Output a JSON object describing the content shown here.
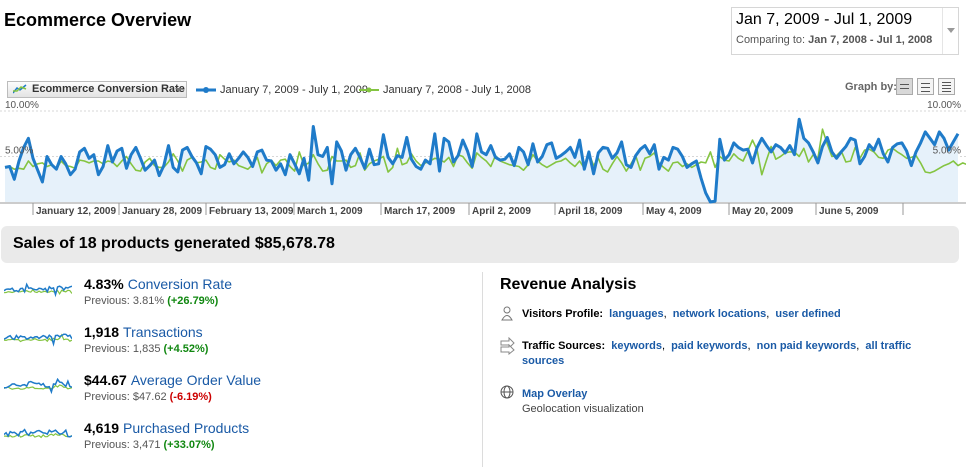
{
  "header": {
    "title": "Ecommerce Overview"
  },
  "date_range": {
    "main": "Jan 7, 2009 - Jul 1, 2009",
    "compare_label": "Comparing to:",
    "compare_range": "Jan 7, 2008 - Jul 1, 2008"
  },
  "graph_controls": {
    "metric_select": "Ecommerce Conversion Rate",
    "legend": [
      {
        "label": "January 7, 2009 - July 1, 2009",
        "color": "#1f7bc9"
      },
      {
        "label": "January 7, 2008 - July 1, 2008",
        "color": "#84c441"
      }
    ],
    "graph_by_label": "Graph by:",
    "graph_by_options": [
      "day-icon",
      "week-icon",
      "month-icon"
    ]
  },
  "chart_data": {
    "type": "line",
    "y_tick_labels": [
      "10.00%",
      "5.00%"
    ],
    "ylim": [
      0,
      10
    ],
    "x_tick_labels": [
      "January 12, 2009",
      "January 28, 2009",
      "February 13, 2009",
      "March 1, 2009",
      "March 17, 2009",
      "April 2, 2009",
      "April 18, 2009",
      "May 4, 2009",
      "May 20, 2009",
      "June 5, 2009"
    ],
    "grid": true,
    "legend_position": "top-left",
    "series": [
      {
        "name": "January 7, 2009 - July 1, 2009",
        "color": "#1f7bc9",
        "values": [
          3.8,
          3.9,
          2.5,
          4.5,
          6.0,
          7.0,
          4.8,
          3.5,
          2.2,
          5.0,
          4.1,
          3.6,
          5.0,
          4.2,
          3.0,
          3.6,
          5.5,
          5.9,
          4.8,
          5.2,
          3.0,
          3.9,
          6.2,
          4.4,
          5.6,
          5.9,
          3.7,
          5.2,
          6.0,
          4.8,
          3.5,
          4.0,
          4.6,
          2.9,
          4.0,
          6.2,
          3.8,
          3.3,
          5.7,
          6.0,
          5.0,
          4.3,
          3.1,
          6.1,
          5.8,
          5.2,
          3.8,
          4.1,
          5.3,
          4.2,
          4.8,
          5.5,
          4.9,
          3.9,
          5.5,
          5.7,
          4.6,
          4.5,
          3.5,
          4.2,
          3.0,
          5.2,
          4.2,
          3.1,
          4.8,
          2.4,
          8.3,
          5.2,
          5.0,
          6.0,
          2.0,
          6.6,
          5.6,
          3.5,
          5.2,
          5.9,
          4.9,
          3.7,
          5.8,
          4.1,
          4.2,
          7.4,
          4.9,
          4.2,
          5.1,
          4.9,
          7.1,
          4.7,
          3.9,
          3.6,
          4.6,
          4.2,
          7.5,
          3.4,
          7.0,
          6.6,
          4.4,
          5.1,
          6.8,
          5.6,
          3.9,
          7.5,
          5.5,
          5.2,
          6.2,
          4.9,
          4.6,
          4.7,
          5.3,
          4.0,
          6.0,
          5.5,
          4.1,
          6.4,
          4.4,
          5.0,
          6.3,
          6.5,
          4.8,
          5.1,
          5.5,
          6.0,
          4.9,
          6.8,
          3.6,
          5.5,
          3.1,
          5.4,
          6.0,
          5.9,
          4.8,
          5.4,
          6.6,
          4.1,
          3.8,
          5.1,
          5.8,
          6.2,
          5.3,
          6.3,
          3.6,
          4.9,
          4.6,
          6.0,
          5.8,
          5.0,
          3.8,
          4.2,
          4.5,
          2.6,
          1.0,
          0.0,
          0.1,
          6.9,
          4.6,
          5.2,
          6.5,
          6.0,
          5.7,
          5.8,
          4.3,
          6.0,
          7.0,
          6.2,
          5.5,
          6.3,
          6.0,
          5.4,
          6.2,
          5.2,
          9.1,
          7.0,
          6.5,
          5.5,
          4.3,
          6.1,
          7.1,
          5.5,
          4.8,
          5.5,
          6.1,
          7.0,
          6.8,
          4.2,
          5.0,
          6.3,
          5.7,
          6.9,
          5.3,
          4.4,
          6.0,
          6.4,
          6.5,
          5.6,
          4.0,
          5.5,
          6.5,
          7.7,
          7.0,
          6.3,
          7.7,
          7.0,
          5.7,
          6.6,
          7.5
        ]
      },
      {
        "name": "January 7, 2008 - July 1, 2008",
        "color": "#84c441",
        "values": [
          3.8,
          3.9,
          3.6,
          3.7,
          3.6,
          4.5,
          3.9,
          4.2,
          4.3,
          3.9,
          4.1,
          3.6,
          4.5,
          4.0,
          3.9,
          3.7,
          4.6,
          4.5,
          4.3,
          4.5,
          4.5,
          4.2,
          4.5,
          4.4,
          3.9,
          4.5,
          5.0,
          4.2,
          3.5,
          3.4,
          4.4,
          4.8,
          4.0,
          3.8,
          3.8,
          4.4,
          5.3,
          4.5,
          3.4,
          4.6,
          4.9,
          4.3,
          4.4,
          4.6,
          3.8,
          3.6,
          5.2,
          4.7,
          4.4,
          4.6,
          4.0,
          3.8,
          3.6,
          4.1,
          4.9,
          3.2,
          4.2,
          4.6,
          4.0,
          4.6,
          4.7,
          3.9,
          3.4,
          5.5,
          4.0,
          4.3,
          5.2,
          4.2,
          3.4,
          3.5,
          5.0,
          4.5,
          4.5,
          4.6,
          3.8,
          4.0,
          5.4,
          3.5,
          4.2,
          4.5,
          4.7,
          5.0,
          3.3,
          3.8,
          5.9,
          4.1,
          4.3,
          5.3,
          4.5,
          4.0,
          4.3,
          4.5,
          4.8,
          4.7,
          4.4,
          4.9,
          3.9,
          5.2,
          5.0,
          4.3,
          3.7,
          5.4,
          4.9,
          4.5,
          3.9,
          5.1,
          4.5,
          4.3,
          4.1,
          4.0,
          3.9,
          3.5,
          4.1,
          5.2,
          4.5,
          4.1,
          3.8,
          4.1,
          4.4,
          4.5,
          4.8,
          4.3,
          3.9,
          4.5,
          3.7,
          5.4,
          4.0,
          4.8,
          3.6,
          3.3,
          4.2,
          5.0,
          4.3,
          3.4,
          4.2,
          5.1,
          3.5,
          4.8,
          5.0,
          5.4,
          4.3,
          3.8,
          3.4,
          4.3,
          4.4,
          3.9,
          4.2,
          3.8,
          4.1,
          4.4,
          4.3,
          5.5,
          3.8,
          5.0,
          4.6,
          4.5,
          5.3,
          4.8,
          4.5,
          5.6,
          6.8,
          5.7,
          3.0,
          4.6,
          6.1,
          4.7,
          5.0,
          5.4,
          5.5,
          5.5,
          5.0,
          5.9,
          4.4,
          5.2,
          4.8,
          8.0,
          6.4,
          5.0,
          5.1,
          5.6,
          4.4,
          4.5,
          6.0,
          4.8,
          5.7,
          5.8,
          5.5,
          4.9,
          4.8,
          5.7,
          5.9,
          5.5,
          5.2,
          4.8,
          4.9,
          5.1,
          4.3,
          3.3,
          3.2,
          3.4,
          3.7,
          4.0,
          4.2,
          4.5,
          4.0,
          4.3,
          4.1
        ]
      }
    ]
  },
  "summary": {
    "sales_text": "Sales of 18 products generated $85,678.78"
  },
  "metrics": [
    {
      "value": "4.83%",
      "label": "Conversion Rate",
      "previous_label": "Previous:",
      "previous": "3.81%",
      "change": "(+26.79%)",
      "direction": "up"
    },
    {
      "value": "1,918",
      "label": "Transactions",
      "previous_label": "Previous:",
      "previous": "1,835",
      "change": "(+4.52%)",
      "direction": "up"
    },
    {
      "value": "$44.67",
      "label": "Average Order Value",
      "previous_label": "Previous:",
      "previous": "$47.62",
      "change": "(-6.19%)",
      "direction": "down"
    },
    {
      "value": "4,619",
      "label": "Purchased Products",
      "previous_label": "Previous:",
      "previous": "3,471",
      "change": "(+33.07%)",
      "direction": "up"
    }
  ],
  "revenue_analysis": {
    "title": "Revenue Analysis",
    "visitors_profile": {
      "label": "Visitors Profile:",
      "links": [
        "languages",
        "network locations",
        "user defined"
      ]
    },
    "traffic_sources": {
      "label": "Traffic Sources:",
      "links": [
        "keywords",
        "paid keywords",
        "non paid keywords",
        "all traffic sources"
      ]
    },
    "map_overlay": {
      "label": "Map Overlay",
      "description": "Geolocation visualization"
    }
  }
}
